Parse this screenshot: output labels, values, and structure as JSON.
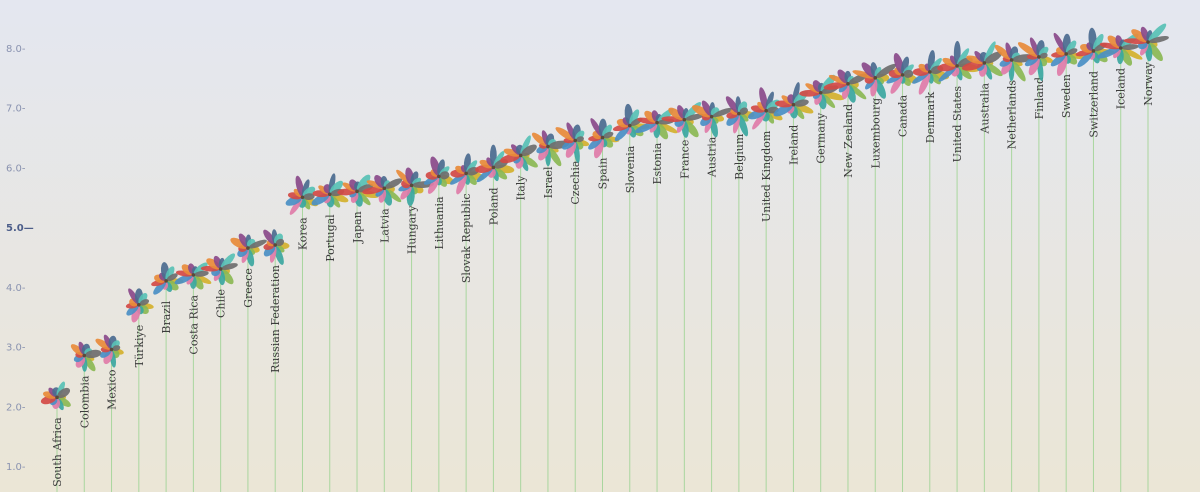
{
  "chart_data": {
    "type": "scatter",
    "ylim": [
      1,
      8.5
    ],
    "yticks": [
      {
        "value": 1,
        "label": "1.0-"
      },
      {
        "value": 2,
        "label": "2.0-"
      },
      {
        "value": 3,
        "label": "3.0-"
      },
      {
        "value": 4,
        "label": "4.0-"
      },
      {
        "value": 5,
        "label": "5.0—"
      },
      {
        "value": 6,
        "label": "6.0-"
      },
      {
        "value": 7,
        "label": "7.0-"
      },
      {
        "value": 8,
        "label": "8.0-"
      }
    ],
    "categories": [
      "South Africa",
      "Colombia",
      "Mexico",
      "Türkiye",
      "Brazil",
      "Costa Rica",
      "Chile",
      "Greece",
      "Russian Federation",
      "Korea",
      "Portugal",
      "Japan",
      "Latvia",
      "Hungary",
      "Lithuania",
      "Slovak Republic",
      "Poland",
      "Italy",
      "Israel",
      "Czechia",
      "Spain",
      "Slovenia",
      "Estonia",
      "France",
      "Austria",
      "Belgium",
      "United Kingdom",
      "Ireland",
      "Germany",
      "New Zealand",
      "Luxembourg",
      "Canada",
      "Denmark",
      "United States",
      "Australia",
      "Netherlands",
      "Finland",
      "Sweden",
      "Switzerland",
      "Iceland",
      "Norway"
    ],
    "values": [
      2.15,
      2.85,
      2.95,
      3.7,
      4.1,
      4.2,
      4.3,
      4.65,
      4.7,
      5.5,
      5.55,
      5.6,
      5.65,
      5.7,
      5.85,
      5.9,
      6.0,
      6.2,
      6.35,
      6.45,
      6.5,
      6.7,
      6.75,
      6.8,
      6.85,
      6.9,
      6.95,
      7.05,
      7.25,
      7.4,
      7.5,
      7.55,
      7.6,
      7.7,
      7.75,
      7.8,
      7.85,
      7.9,
      7.95,
      8.0,
      8.1
    ],
    "petal_colors": [
      "#d4b12c",
      "#8bb854",
      "#3ba7a0",
      "#e07ca8",
      "#4a8fc4",
      "#d24a45",
      "#e88b3a",
      "#8a4a8a",
      "#4b6b8f",
      "#58c1b5",
      "#6e6e6e",
      "#2f9e57"
    ],
    "grid": true,
    "legend": "none"
  }
}
